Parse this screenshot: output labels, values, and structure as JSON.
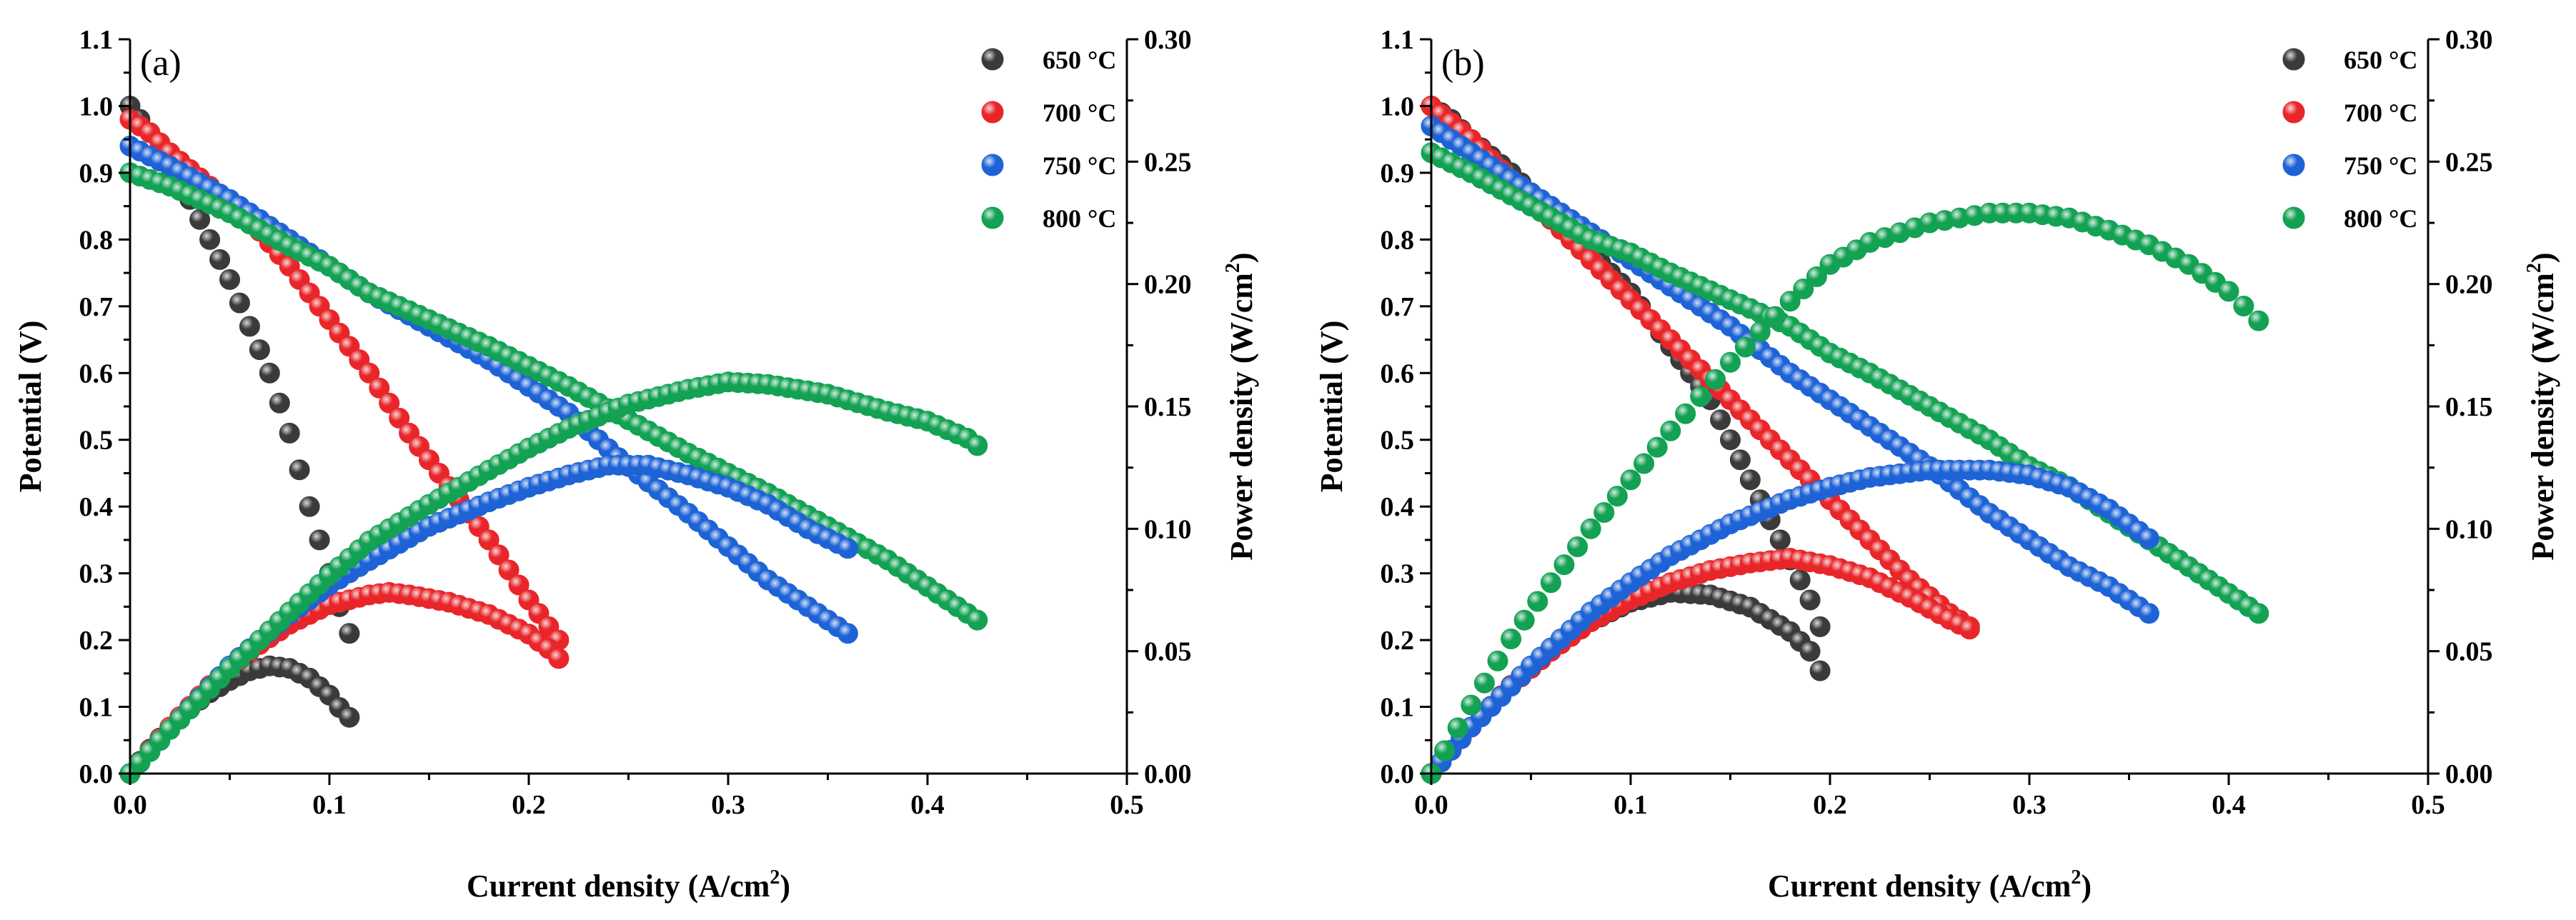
{
  "colors": {
    "650": "#3a3a3a",
    "700": "#e8262a",
    "750": "#1e63d6",
    "800": "#13a153"
  },
  "chart_data": [
    {
      "type": "scatter",
      "panel_label": "(a)",
      "xlabel": "Current density (A/cm",
      "xlabel_sup": "2",
      "xlabel_end": ")",
      "ylabel": "Potential (V)",
      "y2label": "Power density (W/cm",
      "y2label_sup": "2",
      "y2label_end": ")",
      "xlim": [
        0,
        0.5
      ],
      "ylim": [
        0,
        1.1
      ],
      "y2lim": [
        0,
        0.3
      ],
      "xticks": [
        "0.0",
        "0.1",
        "0.2",
        "0.3",
        "0.4",
        "0.5"
      ],
      "yticks": [
        "0.0",
        "0.1",
        "0.2",
        "0.3",
        "0.4",
        "0.5",
        "0.6",
        "0.7",
        "0.8",
        "0.9",
        "1.0",
        "1.1"
      ],
      "y2ticks": [
        "0.00",
        "0.05",
        "0.10",
        "0.15",
        "0.20",
        "0.25",
        "0.30"
      ],
      "legend": {
        "position": "top-right",
        "entries": [
          {
            "label": "650 °C",
            "color_key": "650"
          },
          {
            "label": "700 °C",
            "color_key": "700"
          },
          {
            "label": "750 °C",
            "color_key": "750"
          },
          {
            "label": "800 °C",
            "color_key": "800"
          }
        ]
      },
      "series": [
        {
          "name": "650 °C",
          "color_key": "650",
          "axis": "left",
          "x": [
            0.0,
            0.005,
            0.01,
            0.02,
            0.03,
            0.04,
            0.05,
            0.06,
            0.07,
            0.08,
            0.09,
            0.1,
            0.105,
            0.11
          ],
          "y": [
            1.0,
            0.98,
            0.96,
            0.91,
            0.86,
            0.8,
            0.74,
            0.67,
            0.6,
            0.51,
            0.4,
            0.3,
            0.25,
            0.21
          ]
        },
        {
          "name": "700 °C",
          "color_key": "700",
          "axis": "left",
          "x": [
            0.0,
            0.01,
            0.02,
            0.04,
            0.06,
            0.08,
            0.1,
            0.12,
            0.14,
            0.16,
            0.18,
            0.2,
            0.21,
            0.215
          ],
          "y": [
            0.98,
            0.96,
            0.93,
            0.88,
            0.83,
            0.76,
            0.68,
            0.6,
            0.51,
            0.43,
            0.35,
            0.26,
            0.22,
            0.2
          ]
        },
        {
          "name": "750 °C",
          "color_key": "750",
          "axis": "left",
          "x": [
            0.0,
            0.02,
            0.05,
            0.08,
            0.1,
            0.12,
            0.15,
            0.18,
            0.2,
            0.22,
            0.25,
            0.28,
            0.3,
            0.32,
            0.34,
            0.36
          ],
          "y": [
            0.94,
            0.91,
            0.86,
            0.8,
            0.76,
            0.72,
            0.67,
            0.62,
            0.58,
            0.54,
            0.46,
            0.39,
            0.34,
            0.29,
            0.25,
            0.21
          ]
        },
        {
          "name": "800 °C",
          "color_key": "800",
          "axis": "left",
          "x": [
            0.0,
            0.02,
            0.05,
            0.08,
            0.1,
            0.12,
            0.15,
            0.18,
            0.2,
            0.22,
            0.25,
            0.28,
            0.3,
            0.32,
            0.35,
            0.38,
            0.4,
            0.42,
            0.425
          ],
          "y": [
            0.9,
            0.88,
            0.84,
            0.79,
            0.76,
            0.72,
            0.68,
            0.64,
            0.61,
            0.58,
            0.53,
            0.48,
            0.45,
            0.42,
            0.37,
            0.32,
            0.28,
            0.24,
            0.23
          ]
        },
        {
          "name": "650 °C",
          "color_key": "650",
          "axis": "right",
          "x": [
            0.0,
            0.01,
            0.02,
            0.03,
            0.04,
            0.05,
            0.06,
            0.07,
            0.08,
            0.09,
            0.1,
            0.105,
            0.11
          ],
          "y": [
            0.0,
            0.01,
            0.019,
            0.027,
            0.033,
            0.038,
            0.042,
            0.044,
            0.043,
            0.039,
            0.032,
            0.027,
            0.023
          ]
        },
        {
          "name": "700 °C",
          "color_key": "700",
          "axis": "right",
          "x": [
            0.0,
            0.02,
            0.04,
            0.06,
            0.08,
            0.1,
            0.12,
            0.13,
            0.14,
            0.16,
            0.18,
            0.2,
            0.21,
            0.215
          ],
          "y": [
            0.0,
            0.019,
            0.036,
            0.05,
            0.061,
            0.069,
            0.073,
            0.074,
            0.073,
            0.07,
            0.065,
            0.057,
            0.051,
            0.047
          ]
        },
        {
          "name": "750 °C",
          "color_key": "750",
          "axis": "right",
          "x": [
            0.0,
            0.02,
            0.05,
            0.08,
            0.1,
            0.12,
            0.15,
            0.18,
            0.2,
            0.22,
            0.24,
            0.26,
            0.28,
            0.3,
            0.32,
            0.34,
            0.36
          ],
          "y": [
            0.0,
            0.018,
            0.044,
            0.065,
            0.077,
            0.087,
            0.101,
            0.111,
            0.117,
            0.122,
            0.126,
            0.126,
            0.122,
            0.117,
            0.11,
            0.1,
            0.092
          ]
        },
        {
          "name": "800 °C",
          "color_key": "800",
          "axis": "right",
          "x": [
            0.0,
            0.02,
            0.05,
            0.08,
            0.1,
            0.12,
            0.15,
            0.18,
            0.2,
            0.22,
            0.25,
            0.28,
            0.3,
            0.32,
            0.35,
            0.38,
            0.4,
            0.42,
            0.425
          ],
          "y": [
            0.0,
            0.018,
            0.043,
            0.066,
            0.081,
            0.095,
            0.11,
            0.124,
            0.133,
            0.141,
            0.151,
            0.157,
            0.16,
            0.159,
            0.155,
            0.148,
            0.144,
            0.137,
            0.134
          ]
        }
      ]
    },
    {
      "type": "scatter",
      "panel_label": "(b)",
      "xlabel": "Current density (A/cm",
      "xlabel_sup": "2",
      "xlabel_end": ")",
      "ylabel": "Potential (V)",
      "y2label": "Power density (W/cm",
      "y2label_sup": "2",
      "y2label_end": ")",
      "xlim": [
        0,
        0.5
      ],
      "ylim": [
        0,
        1.1
      ],
      "y2lim": [
        0,
        0.3
      ],
      "xticks": [
        "0.0",
        "0.1",
        "0.2",
        "0.3",
        "0.4",
        "0.5"
      ],
      "yticks": [
        "0.0",
        "0.1",
        "0.2",
        "0.3",
        "0.4",
        "0.5",
        "0.6",
        "0.7",
        "0.8",
        "0.9",
        "1.0",
        "1.1"
      ],
      "y2ticks": [
        "0.00",
        "0.05",
        "0.10",
        "0.15",
        "0.20",
        "0.25",
        "0.30"
      ],
      "legend": {
        "position": "top-right",
        "entries": [
          {
            "label": "650 °C",
            "color_key": "650"
          },
          {
            "label": "700 °C",
            "color_key": "700"
          },
          {
            "label": "750 °C",
            "color_key": "750"
          },
          {
            "label": "800 °C",
            "color_key": "800"
          }
        ]
      },
      "series": [
        {
          "name": "650 °C",
          "color_key": "650",
          "axis": "left",
          "x": [
            0.0,
            0.01,
            0.02,
            0.04,
            0.06,
            0.08,
            0.1,
            0.12,
            0.14,
            0.15,
            0.16,
            0.17,
            0.18,
            0.19,
            0.195
          ],
          "y": [
            1.0,
            0.98,
            0.95,
            0.9,
            0.84,
            0.78,
            0.72,
            0.64,
            0.56,
            0.5,
            0.44,
            0.38,
            0.32,
            0.26,
            0.22
          ]
        },
        {
          "name": "700 °C",
          "color_key": "700",
          "axis": "left",
          "x": [
            0.0,
            0.02,
            0.04,
            0.06,
            0.08,
            0.1,
            0.12,
            0.14,
            0.16,
            0.18,
            0.2,
            0.22,
            0.24,
            0.26,
            0.27
          ],
          "y": [
            1.0,
            0.95,
            0.89,
            0.83,
            0.77,
            0.71,
            0.65,
            0.59,
            0.53,
            0.47,
            0.41,
            0.35,
            0.29,
            0.24,
            0.22
          ]
        },
        {
          "name": "750 °C",
          "color_key": "750",
          "axis": "left",
          "x": [
            0.0,
            0.02,
            0.05,
            0.08,
            0.1,
            0.12,
            0.15,
            0.18,
            0.2,
            0.22,
            0.25,
            0.28,
            0.3,
            0.32,
            0.34,
            0.36
          ],
          "y": [
            0.97,
            0.93,
            0.87,
            0.81,
            0.77,
            0.73,
            0.67,
            0.6,
            0.56,
            0.52,
            0.46,
            0.39,
            0.35,
            0.31,
            0.28,
            0.24
          ]
        },
        {
          "name": "800 °C",
          "color_key": "800",
          "axis": "left",
          "x": [
            0.0,
            0.02,
            0.05,
            0.08,
            0.1,
            0.12,
            0.15,
            0.18,
            0.2,
            0.22,
            0.25,
            0.28,
            0.3,
            0.32,
            0.35,
            0.38,
            0.4,
            0.415
          ],
          "y": [
            0.93,
            0.9,
            0.85,
            0.8,
            0.78,
            0.75,
            0.71,
            0.67,
            0.63,
            0.6,
            0.55,
            0.5,
            0.46,
            0.43,
            0.37,
            0.31,
            0.27,
            0.24
          ]
        },
        {
          "name": "650 °C",
          "color_key": "650",
          "axis": "right",
          "x": [
            0.0,
            0.02,
            0.04,
            0.06,
            0.08,
            0.1,
            0.12,
            0.14,
            0.16,
            0.18,
            0.19,
            0.195
          ],
          "y": [
            0.0,
            0.019,
            0.036,
            0.05,
            0.062,
            0.07,
            0.074,
            0.073,
            0.068,
            0.058,
            0.05,
            0.042
          ]
        },
        {
          "name": "700 °C",
          "color_key": "700",
          "axis": "right",
          "x": [
            0.0,
            0.02,
            0.04,
            0.06,
            0.08,
            0.1,
            0.12,
            0.14,
            0.16,
            0.18,
            0.2,
            0.22,
            0.24,
            0.26,
            0.27
          ],
          "y": [
            0.0,
            0.019,
            0.036,
            0.05,
            0.062,
            0.071,
            0.078,
            0.083,
            0.086,
            0.088,
            0.085,
            0.08,
            0.072,
            0.063,
            0.059
          ]
        },
        {
          "name": "750 °C",
          "color_key": "750",
          "axis": "right",
          "x": [
            0.0,
            0.02,
            0.05,
            0.08,
            0.1,
            0.12,
            0.15,
            0.18,
            0.2,
            0.22,
            0.25,
            0.28,
            0.3,
            0.32,
            0.34,
            0.36
          ],
          "y": [
            0.0,
            0.019,
            0.044,
            0.066,
            0.078,
            0.089,
            0.102,
            0.112,
            0.117,
            0.121,
            0.124,
            0.124,
            0.122,
            0.117,
            0.108,
            0.096
          ]
        },
        {
          "name": "800 °C",
          "color_key": "800",
          "axis": "right",
          "x": [
            0.0,
            0.02,
            0.04,
            0.06,
            0.08,
            0.1,
            0.12,
            0.15,
            0.18,
            0.2,
            0.22,
            0.25,
            0.28,
            0.3,
            0.32,
            0.34,
            0.36,
            0.38,
            0.4,
            0.415
          ],
          "y": [
            0.0,
            0.028,
            0.055,
            0.078,
            0.1,
            0.12,
            0.14,
            0.168,
            0.193,
            0.208,
            0.217,
            0.225,
            0.229,
            0.229,
            0.227,
            0.222,
            0.216,
            0.208,
            0.197,
            0.185
          ]
        }
      ]
    }
  ]
}
